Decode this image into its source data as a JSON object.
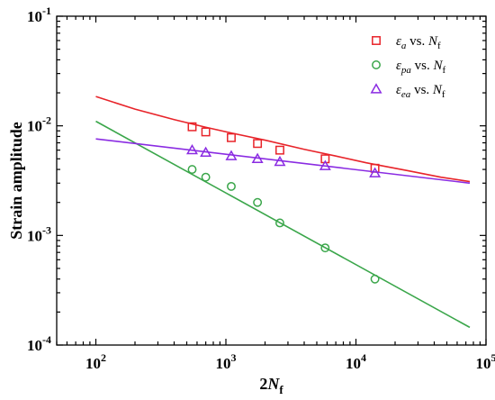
{
  "chart_data": {
    "type": "scatter",
    "xscale": "log",
    "yscale": "log",
    "xlim": [
      50,
      100000
    ],
    "ylim": [
      0.0001,
      0.1
    ],
    "xlabel": {
      "main": "2",
      "italic": "N",
      "sub": "f"
    },
    "ylabel": "Strain amplitude",
    "xticks": [
      {
        "value": 100,
        "base": "10",
        "exp": "2"
      },
      {
        "value": 1000,
        "base": "10",
        "exp": "3"
      },
      {
        "value": 10000,
        "base": "10",
        "exp": "4"
      },
      {
        "value": 100000,
        "base": "10",
        "exp": "5"
      }
    ],
    "yticks": [
      {
        "value": 0.0001,
        "base": "10",
        "exp": "-4"
      },
      {
        "value": 0.001,
        "base": "10",
        "exp": "-3"
      },
      {
        "value": 0.01,
        "base": "10",
        "exp": "-2"
      },
      {
        "value": 0.1,
        "base": "10",
        "exp": "-1"
      }
    ],
    "legend_position": "top-right",
    "series": [
      {
        "key": "ea",
        "label": {
          "symbol": "ε",
          "sub": "a",
          "text": " vs. ",
          "italic": "N",
          "sub2": "f"
        },
        "marker": "square",
        "color": "#e8242a",
        "points": [
          [
            550,
            0.0098
          ],
          [
            700,
            0.0088
          ],
          [
            1100,
            0.0078
          ],
          [
            1750,
            0.0069
          ],
          [
            2600,
            0.006
          ],
          [
            5800,
            0.005
          ],
          [
            14000,
            0.0041
          ]
        ],
        "fit": [
          [
            100,
            0.0185
          ],
          [
            200,
            0.0142
          ],
          [
            400,
            0.0114
          ],
          [
            700,
            0.0097
          ],
          [
            1100,
            0.0086
          ],
          [
            2000,
            0.0074
          ],
          [
            4000,
            0.0061
          ],
          [
            7000,
            0.0053
          ],
          [
            12000,
            0.0046
          ],
          [
            25000,
            0.0039
          ],
          [
            45000,
            0.0034
          ],
          [
            75000,
            0.0031
          ]
        ]
      },
      {
        "key": "epa",
        "label": {
          "symbol": "ε",
          "sub": "pa",
          "text": " vs. ",
          "italic": "N",
          "sub2": "f"
        },
        "marker": "circle",
        "color": "#3aa64a",
        "points": [
          [
            550,
            0.004
          ],
          [
            700,
            0.0034
          ],
          [
            1100,
            0.0028
          ],
          [
            1750,
            0.002
          ],
          [
            2600,
            0.0013
          ],
          [
            5800,
            0.00077
          ],
          [
            14000,
            0.0004
          ]
        ],
        "fit": [
          [
            100,
            0.011
          ],
          [
            75000,
            0.000145
          ]
        ]
      },
      {
        "key": "eea",
        "label": {
          "symbol": "ε",
          "sub": "ea",
          "text": " vs. ",
          "italic": "N",
          "sub2": "f"
        },
        "marker": "triangle",
        "color": "#8a2be2",
        "points": [
          [
            550,
            0.006
          ],
          [
            700,
            0.0057
          ],
          [
            1100,
            0.0053
          ],
          [
            1750,
            0.005
          ],
          [
            2600,
            0.0047
          ],
          [
            5800,
            0.0043
          ],
          [
            14000,
            0.0037
          ]
        ],
        "fit": [
          [
            100,
            0.0076
          ],
          [
            75000,
            0.003
          ]
        ]
      }
    ]
  }
}
